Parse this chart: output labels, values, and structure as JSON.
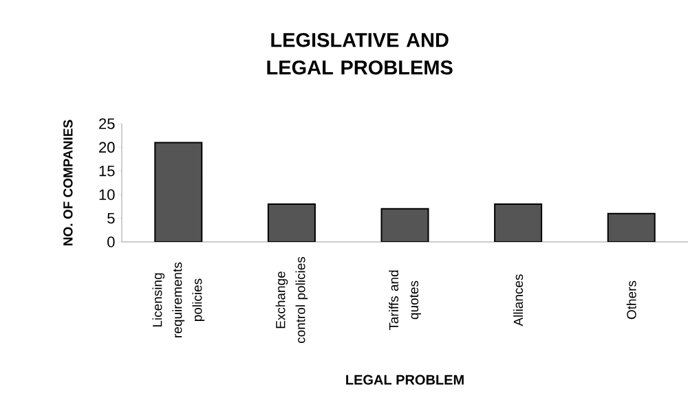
{
  "chart_data": {
    "type": "bar",
    "title": "LEGISLATIVE AND LEGAL PROBLEMS",
    "xlabel": "LEGAL PROBLEM",
    "ylabel": "NO. OF COMPANIES",
    "categories": [
      "Licensing requirements policies",
      "Exchange control policies",
      "Tariffs and quotes",
      "Alliances",
      "Others"
    ],
    "values": [
      21,
      8,
      7,
      8,
      6
    ],
    "color": "#555555",
    "ylim": [
      0,
      25
    ],
    "yticks": [
      0,
      5,
      10,
      15,
      20,
      25
    ],
    "grid": false
  }
}
